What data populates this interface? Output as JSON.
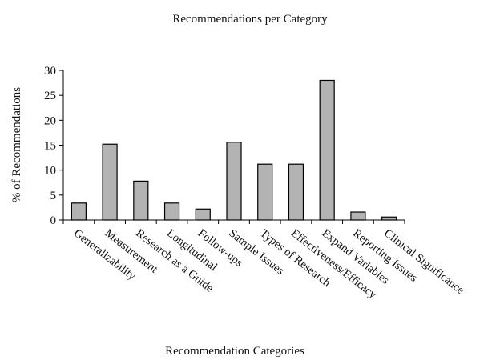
{
  "chart_data": {
    "type": "bar",
    "title": "Recommendations per Category",
    "xlabel": "Recommendation Categories",
    "ylabel": "% of Recommendations",
    "ylim": [
      0,
      30
    ],
    "yticks": [
      0,
      5,
      10,
      15,
      20,
      25,
      30
    ],
    "grid": false,
    "legend": "none",
    "bar_color": "#b3b3b3",
    "categories": [
      "Generalizability",
      "Measurement",
      "Research as a Guide",
      "Longitudinal",
      "Follow-ups",
      "Sample Issues",
      "Types of Research",
      "Effectiveness/Efficacy",
      "Expand Variables",
      "Reporting Issues",
      "Clinical Significance"
    ],
    "values": [
      3.4,
      15.2,
      7.8,
      3.4,
      2.2,
      15.6,
      11.2,
      11.2,
      28.0,
      1.6,
      0.6
    ]
  }
}
